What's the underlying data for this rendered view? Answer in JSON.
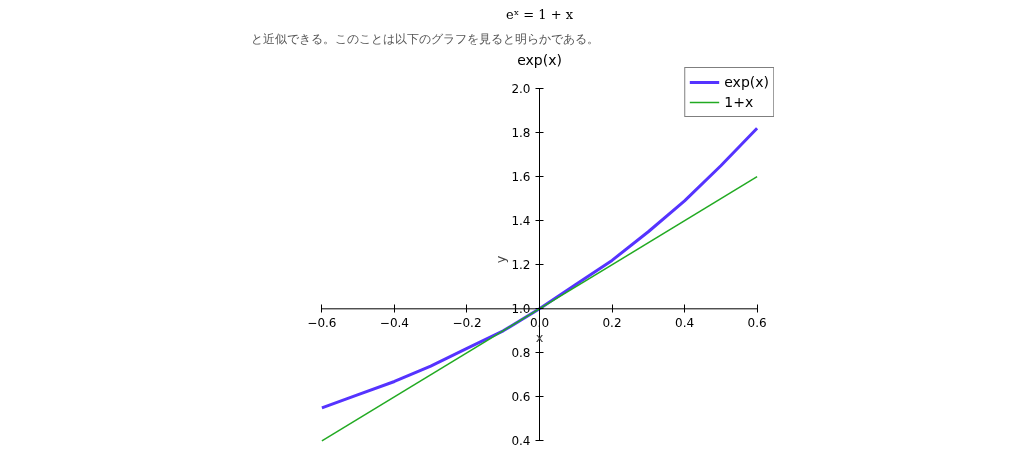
{
  "chart_data": {
    "type": "line",
    "title": "exp(x)",
    "xlabel": "x",
    "ylabel": "y",
    "annotations": [
      "eˣ = 1 + x",
      "と近似できる。このことは以下のグラフを見ると明らかである。"
    ],
    "xlim": [
      -0.6,
      0.6
    ],
    "ylim": [
      0.4,
      2.0
    ],
    "xticks": [
      {
        "value": -0.6,
        "label": "−0.6"
      },
      {
        "value": -0.4,
        "label": "−0.4"
      },
      {
        "value": -0.2,
        "label": "−0.2"
      },
      "0.0",
      "0.2",
      "0.4",
      "0.6"
    ],
    "yticks": [
      0.4,
      0.6,
      0.8,
      "1.0",
      1.2,
      1.4,
      1.6,
      1.8,
      "2.0"
    ],
    "grid": false,
    "legend": "top right",
    "marker": "none",
    "line_style": "solid",
    "series": [
      {
        "name": "exp(x)",
        "color": "#5533ff",
        "x": [
          -0.6,
          -0.5,
          -0.4,
          -0.3,
          -0.2,
          -0.1,
          0,
          0.1,
          0.2,
          0.3,
          0.4,
          0.5,
          0.6
        ],
        "values": [
          0.55,
          0.61,
          0.67,
          0.74,
          0.82,
          0.9,
          1.0,
          1.11,
          1.22,
          1.35,
          1.49,
          1.65,
          1.82
        ]
      },
      {
        "name": "1+x",
        "color": "#22aa22",
        "x": [
          -0.6,
          0.6
        ],
        "values": [
          0.4,
          1.6
        ]
      }
    ]
  }
}
